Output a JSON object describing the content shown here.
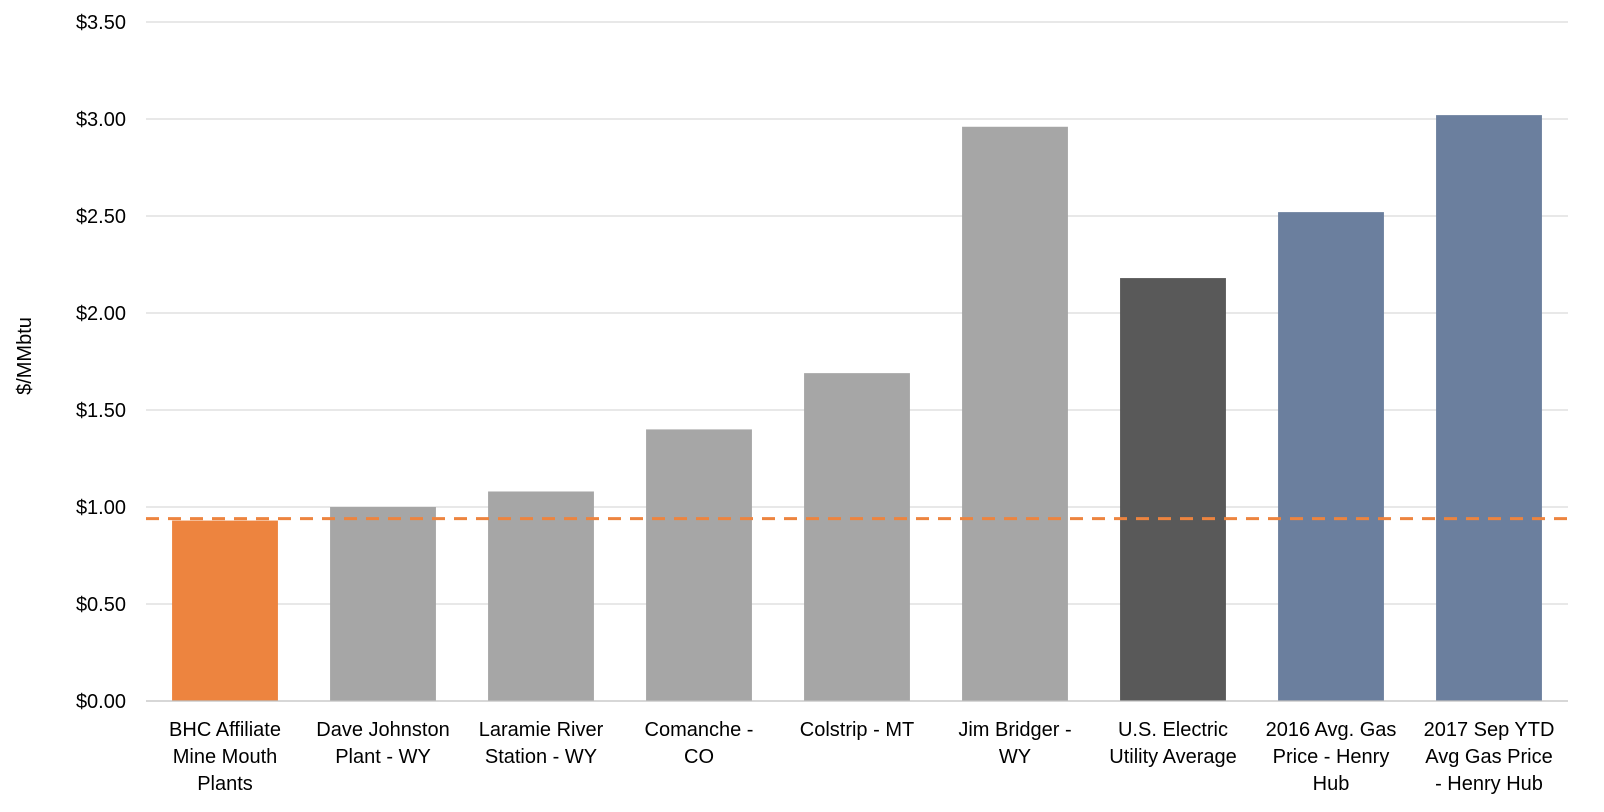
{
  "chart_data": {
    "type": "bar",
    "title": "",
    "xlabel": "",
    "ylabel": "$/MMbtu",
    "ylim": [
      0,
      3.5
    ],
    "y_ticks": [
      0,
      0.5,
      1.0,
      1.5,
      2.0,
      2.5,
      3.0,
      3.5
    ],
    "y_tick_labels": [
      "$0.00",
      "$0.50",
      "$1.00",
      "$1.50",
      "$2.00",
      "$2.50",
      "$3.00",
      "$3.50"
    ],
    "grid": true,
    "categories": [
      "BHC Affiliate Mine Mouth Plants",
      "Dave Johnston Plant - WY",
      "Laramie River Station - WY",
      "Comanche - CO",
      "Colstrip - MT",
      "Jim Bridger - WY",
      "U.S. Electric Utility Average",
      "2016 Avg. Gas Price - Henry Hub",
      "2017 Sep YTD Avg Gas Price - Henry Hub"
    ],
    "category_label_lines": [
      [
        "BHC Affiliate",
        "Mine Mouth",
        "Plants"
      ],
      [
        "Dave Johnston",
        "Plant - WY"
      ],
      [
        "Laramie River",
        "Station - WY"
      ],
      [
        "Comanche -",
        "CO"
      ],
      [
        "Colstrip - MT"
      ],
      [
        "Jim Bridger -",
        "WY"
      ],
      [
        "U.S. Electric",
        "Utility Average"
      ],
      [
        "2016 Avg. Gas",
        "Price - Henry",
        "Hub"
      ],
      [
        "2017 Sep YTD",
        "Avg Gas Price",
        "- Henry Hub"
      ]
    ],
    "values": [
      0.93,
      1.0,
      1.08,
      1.4,
      1.69,
      2.96,
      2.18,
      2.52,
      3.02
    ],
    "bar_colors": [
      "#ED843F",
      "#A6A6A6",
      "#A6A6A6",
      "#A6A6A6",
      "#A6A6A6",
      "#A6A6A6",
      "#595959",
      "#6B7F9E",
      "#6B7F9E"
    ],
    "reference_line": {
      "value": 0.94,
      "color": "#ED843F",
      "style": "dashed"
    },
    "grid_color": "#D9D9D9",
    "axis_color": "#BFBFBF"
  }
}
